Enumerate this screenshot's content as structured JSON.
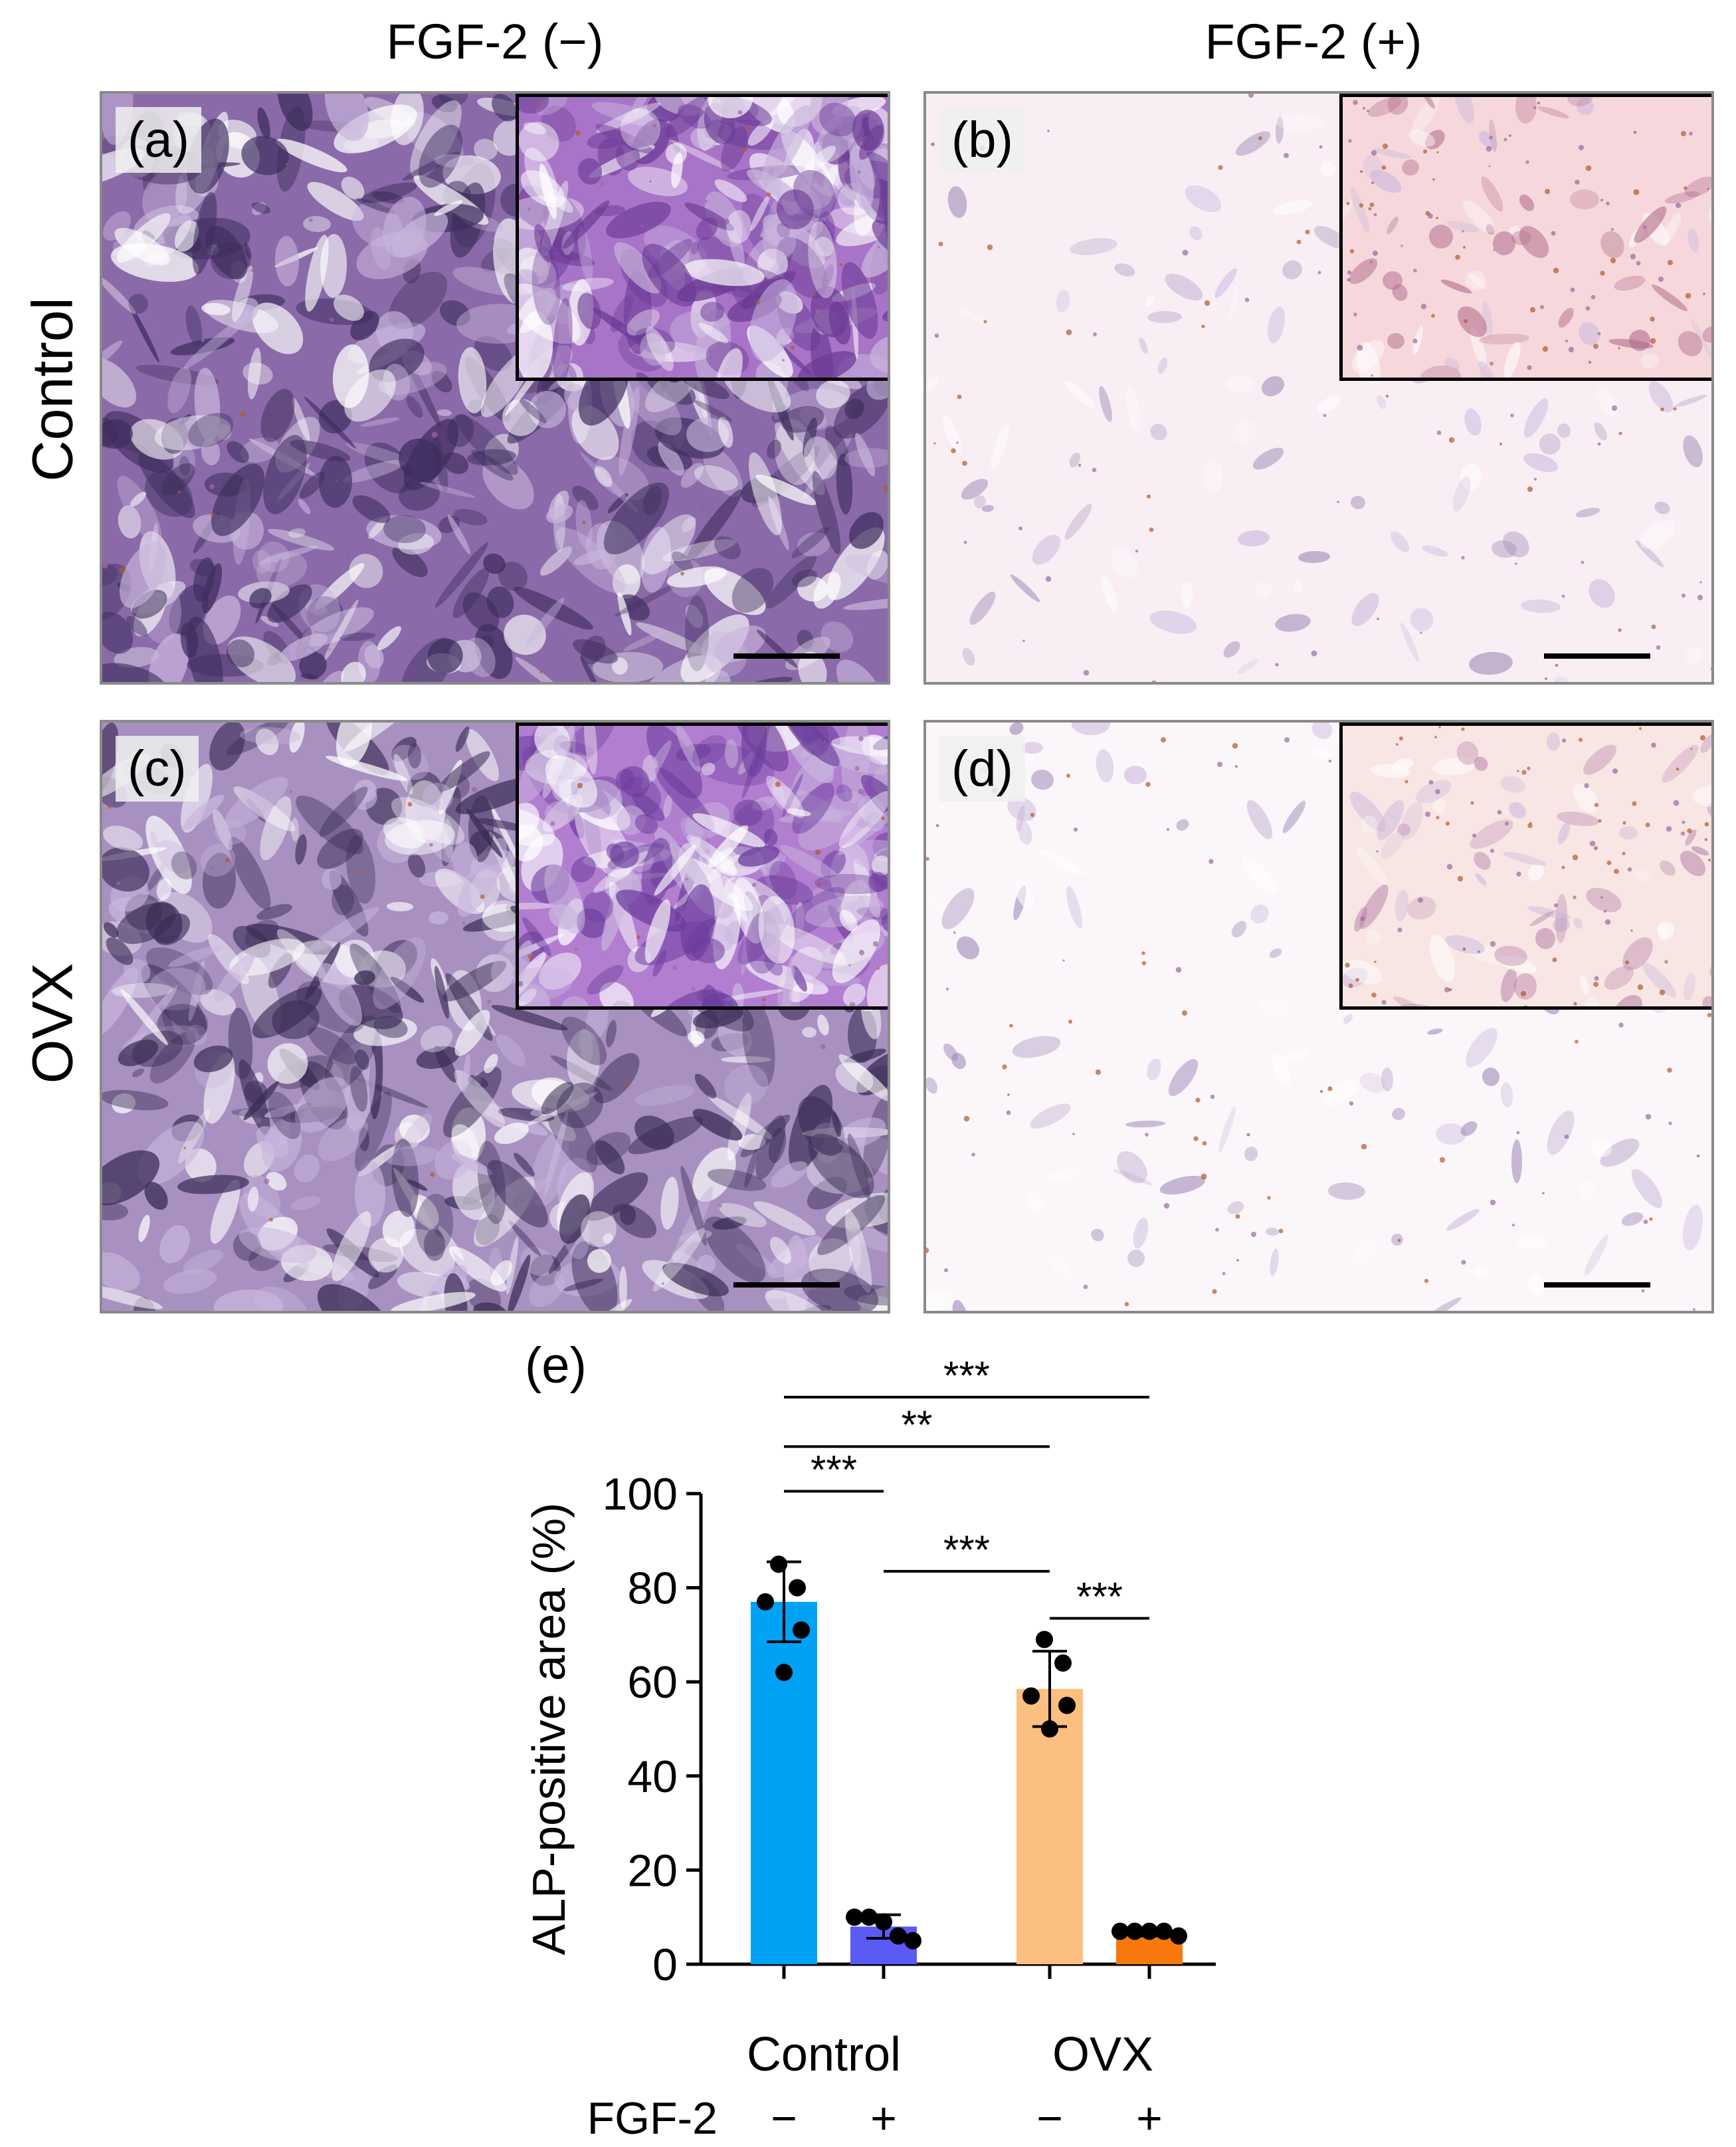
{
  "columns": [
    "FGF-2 (−)",
    "FGF-2 (+)"
  ],
  "rows": [
    "Control",
    "OVX"
  ],
  "panels": [
    {
      "label": "(a)",
      "fill": "#8a6aa8",
      "deep": "#3e2d5e"
    },
    {
      "label": "(b)",
      "fill": "#f8eef4",
      "deep": "#9c86b4"
    },
    {
      "label": "(c)",
      "fill": "#a891c0",
      "deep": "#3a2b55"
    },
    {
      "label": "(d)",
      "fill": "#fbf6f9",
      "deep": "#9b85b6"
    }
  ],
  "chart_data": {
    "panel_label": "(e)",
    "type": "bar",
    "ylabel": "ALP-positive area (%)",
    "ylim": [
      0,
      100
    ],
    "yticks": [
      0,
      20,
      40,
      60,
      80,
      100
    ],
    "groups": [
      "Control",
      "OVX"
    ],
    "row_label": "FGF-2",
    "fgf_levels": [
      "−",
      "+",
      "−",
      "+"
    ],
    "bars": [
      {
        "group": "Control",
        "fgf2": "−",
        "value": 77,
        "sd": 8.5,
        "color": "#00a2f5",
        "points": [
          85,
          80,
          77,
          71,
          62
        ]
      },
      {
        "group": "Control",
        "fgf2": "+",
        "value": 8,
        "sd": 2.5,
        "color": "#5a5af5",
        "points": [
          10,
          10,
          9,
          6,
          5
        ]
      },
      {
        "group": "OVX",
        "fgf2": "−",
        "value": 58.5,
        "sd": 8,
        "color": "#fbbf80",
        "points": [
          69,
          64,
          57,
          55,
          50
        ]
      },
      {
        "group": "OVX",
        "fgf2": "+",
        "value": 6.5,
        "sd": 0.5,
        "color": "#f8780e",
        "points": [
          7,
          7,
          7,
          7,
          6
        ]
      }
    ],
    "significance": [
      {
        "from": 0,
        "to": 1,
        "y": 100.5,
        "label": "***"
      },
      {
        "from": 0,
        "to": 2,
        "y": 110,
        "label": "**"
      },
      {
        "from": 0,
        "to": 3,
        "y": 120.5,
        "label": "***"
      },
      {
        "from": 1,
        "to": 2,
        "y": 83.5,
        "label": "***"
      },
      {
        "from": 2,
        "to": 3,
        "y": 73.5,
        "label": "***"
      }
    ]
  }
}
